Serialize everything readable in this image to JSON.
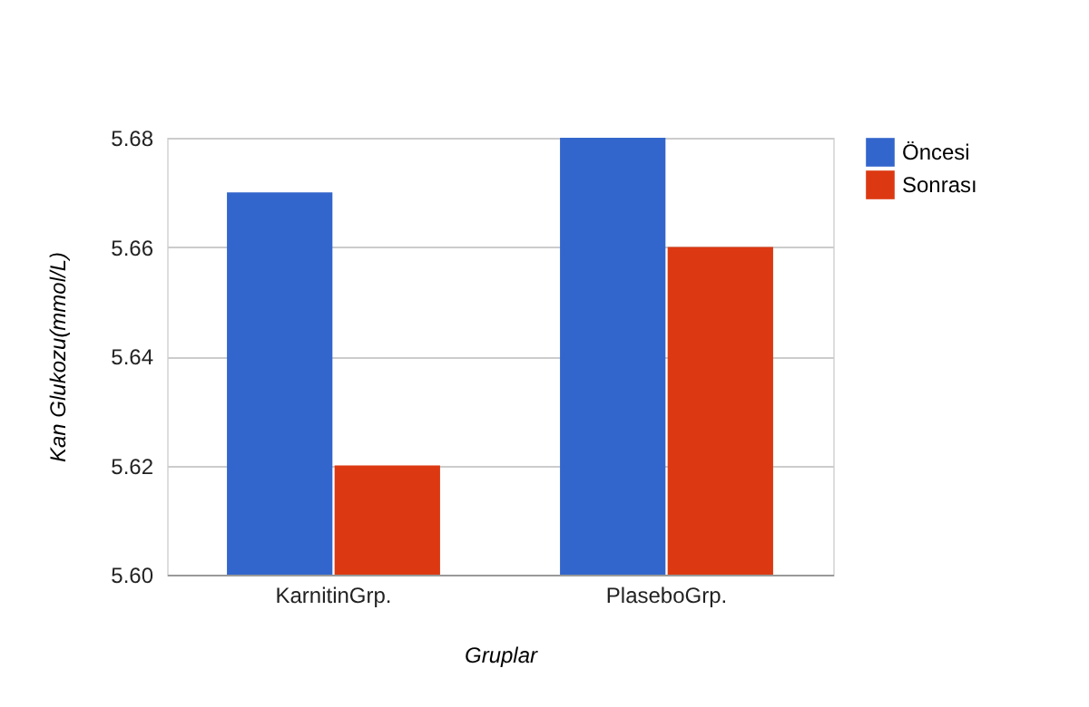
{
  "chart_data": {
    "type": "bar",
    "categories": [
      "KarnitinGrp.",
      "PlaseboGrp."
    ],
    "series": [
      {
        "name": "Öncesi",
        "color": "#3366cc",
        "values": [
          5.67,
          5.68
        ]
      },
      {
        "name": "Sonrası",
        "color": "#dc3912",
        "values": [
          5.62,
          5.66
        ]
      }
    ],
    "xlabel": "Gruplar",
    "ylabel": "Kan Glukozu(mmol/L)",
    "ylim": [
      5.6,
      5.68
    ],
    "yticks": [
      {
        "value": 5.6,
        "label": "5.60"
      },
      5.62,
      5.64,
      5.66,
      5.68
    ],
    "grid": "y",
    "legend": "top right"
  }
}
